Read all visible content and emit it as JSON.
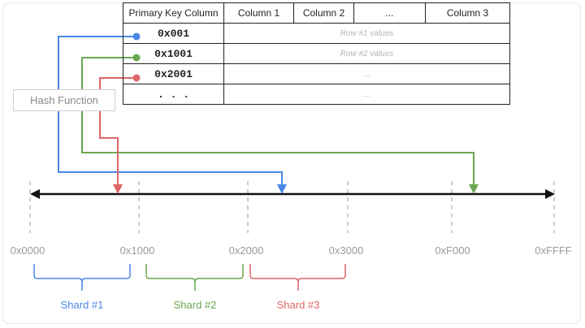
{
  "table": {
    "headers": [
      "Primary Key Column",
      "Column 1",
      "Column 2",
      "...",
      "Column 3"
    ],
    "rows": [
      {
        "key": "0x001",
        "values": "Row #1 values"
      },
      {
        "key": "0x1001",
        "values": "Row #2 values"
      },
      {
        "key": "0x2001",
        "values": "..."
      },
      {
        "key": ". . .",
        "values": "..."
      }
    ]
  },
  "hash_function": "Hash Function",
  "axis": {
    "ticks": [
      "0x0000",
      "0x1000",
      "0x2000",
      "0x3000",
      "0xF000",
      "0xFFFF"
    ]
  },
  "shards": [
    {
      "label": "Shard #1",
      "color": "#4a86e8"
    },
    {
      "label": "Shard #2",
      "color": "#6aa84f"
    },
    {
      "label": "Shard #3",
      "color": "#e06666"
    }
  ],
  "colors": {
    "blue": "#4a86e8",
    "green": "#6aa84f",
    "red": "#e06666",
    "axis": "#111111"
  }
}
